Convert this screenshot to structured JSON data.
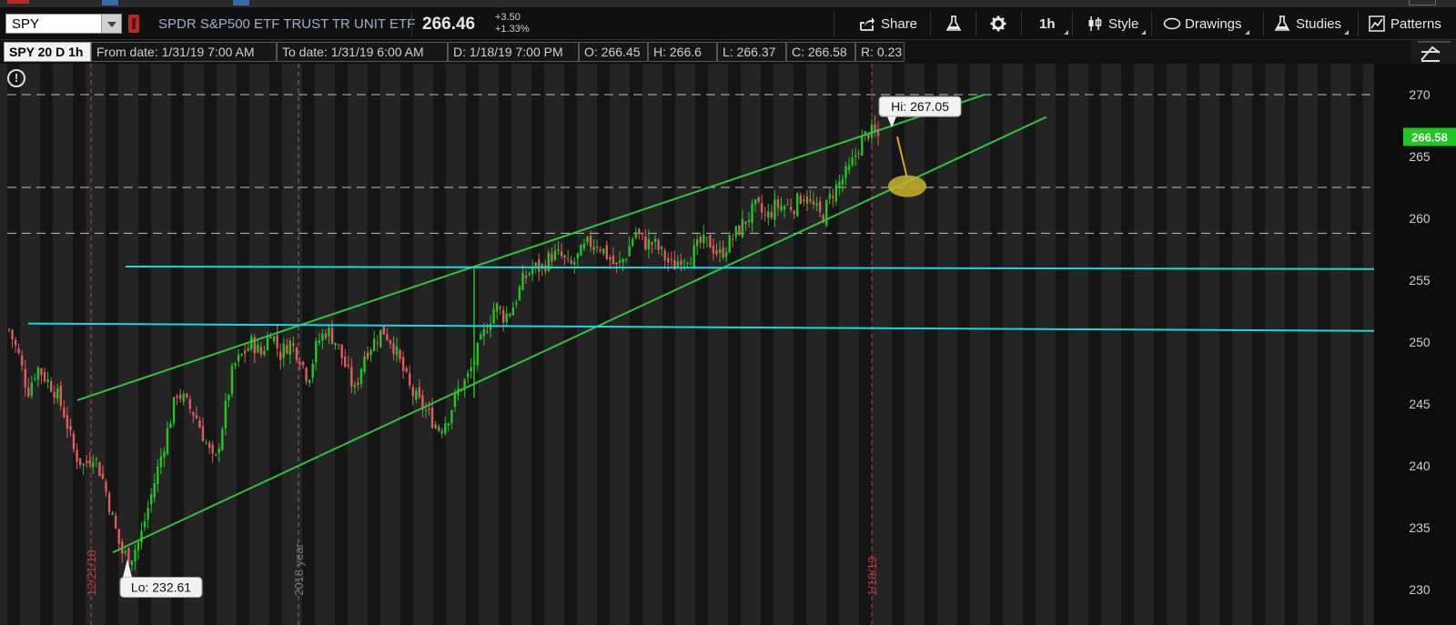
{
  "toolbar": {
    "symbol": "SPY",
    "description": "SPDR S&P500 ETF TRUST TR UNIT ETF",
    "last_price": "266.46",
    "net_change": "+3.50",
    "pct_change": "+1.33%",
    "buttons": {
      "share": "Share",
      "aggregation": "1h",
      "style": "Style",
      "drawings": "Drawings",
      "studies": "Studies",
      "patterns": "Patterns"
    }
  },
  "chart_header": {
    "title": "SPY 20 D 1h",
    "from_date": "From date: 1/31/19 7:00 AM",
    "to_date": "To date: 1/31/19 6:00 AM",
    "d": "D: 1/18/19 7:00 PM",
    "o": "O: 266.45",
    "h": "H: 266.6",
    "l": "L: 266.37",
    "c": "C: 266.58",
    "r": "R: 0.23"
  },
  "colors": {
    "up": "#22c622",
    "down": "#e05c5c",
    "trend_line": "#2ec43a",
    "horizontal_line": "#1ed6e0",
    "price_tag": "#22c622",
    "highlight": "#c8b42a"
  },
  "chart_data": {
    "type": "candlestick",
    "y_range": [
      228,
      272
    ],
    "y_ticks": [
      "270",
      "265",
      "260",
      "255",
      "250",
      "245",
      "240",
      "235",
      "230"
    ],
    "current_price_tag": "266.58",
    "hi_label": "Hi: 267.05",
    "lo_label": "Lo: 232.61",
    "hi_value": 267.05,
    "lo_value": 232.61,
    "vertical_labels": [
      "12/21/18",
      "2018 year",
      "1/18/19"
    ],
    "dashed_levels": [
      270,
      262.5,
      258.8
    ],
    "horizontal_levels": [
      {
        "from": 256.1,
        "to": 255.9
      },
      {
        "from": 251.5,
        "to": 250.9
      }
    ],
    "trend_lines": [
      {
        "from": 245.3,
        "to": 270.0
      },
      {
        "from": 233.0,
        "to": 268.2
      }
    ],
    "price_path": [
      251,
      249,
      246,
      248,
      247,
      246,
      244,
      241,
      240,
      241,
      239,
      236,
      233,
      232.6,
      234,
      237,
      240,
      243,
      246,
      245,
      244,
      242,
      240,
      244,
      248,
      249,
      250,
      249,
      251,
      249,
      250,
      249,
      247,
      250,
      251,
      250,
      248,
      246,
      249,
      250,
      251,
      250,
      248,
      246,
      245,
      244,
      243,
      244,
      246,
      247,
      249,
      251,
      253,
      252,
      253,
      255,
      256,
      256,
      257,
      257,
      256,
      257,
      258,
      258,
      257,
      256,
      257,
      259,
      258,
      258,
      257,
      256,
      257,
      257,
      258,
      258,
      257,
      258,
      259,
      260,
      261,
      260,
      261,
      261,
      261,
      262,
      261,
      260,
      262,
      263,
      264,
      266,
      267,
      266.6
    ]
  }
}
